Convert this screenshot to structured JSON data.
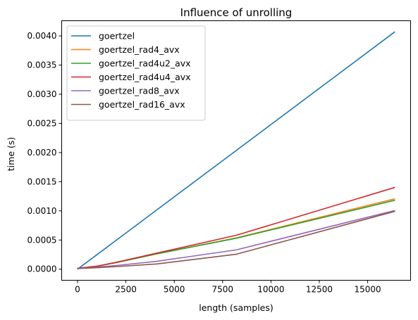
{
  "chart_data": {
    "type": "line",
    "title": "Influence of unrolling",
    "xlabel": "length (samples)",
    "ylabel": "time (s)",
    "xlim": [
      -820,
      17220
    ],
    "ylim": [
      -0.00019,
      0.00426
    ],
    "xticks": [
      0,
      2500,
      5000,
      7500,
      10000,
      12500,
      15000
    ],
    "xtick_labels": [
      "0",
      "2500",
      "5000",
      "7500",
      "10000",
      "12500",
      "15000"
    ],
    "yticks": [
      0.0,
      0.0005,
      0.001,
      0.0015,
      0.002,
      0.0025,
      0.003,
      0.0035,
      0.004
    ],
    "ytick_labels": [
      "0.0000",
      "0.0005",
      "0.0010",
      "0.0015",
      "0.0020",
      "0.0025",
      "0.0030",
      "0.0035",
      "0.0040"
    ],
    "grid": false,
    "legend_position": "top-left",
    "x": [
      16,
      32,
      64,
      128,
      256,
      512,
      1024,
      2048,
      4096,
      8192,
      16384
    ],
    "series": [
      {
        "name": "goertzel",
        "color": "#1f77b4",
        "values": [
          4e-06,
          8e-06,
          1.6e-05,
          3.2e-05,
          6.4e-05,
          0.000127,
          0.000254,
          0.000508,
          0.001016,
          0.002032,
          0.004065
        ]
      },
      {
        "name": "goertzel_rad4_avx",
        "color": "#ff7f0e",
        "values": [
          1.5e-05,
          1.6e-05,
          1.7e-05,
          1.9e-05,
          2.4e-05,
          3.3e-05,
          5.1e-05,
          0.000117,
          0.000265,
          0.000535,
          0.001205
        ]
      },
      {
        "name": "goertzel_rad4u2_avx",
        "color": "#2ca02c",
        "values": [
          1.5e-05,
          1.6e-05,
          1.7e-05,
          1.9e-05,
          2.4e-05,
          3.3e-05,
          5.1e-05,
          0.000116,
          0.000263,
          0.00053,
          0.00118
        ]
      },
      {
        "name": "goertzel_rad4u4_avx",
        "color": "#d62728",
        "values": [
          1.5e-05,
          1.6e-05,
          1.7e-05,
          2e-05,
          2.5e-05,
          3.4e-05,
          5.3e-05,
          0.000122,
          0.000275,
          0.00058,
          0.0014
        ]
      },
      {
        "name": "goertzel_rad8_avx",
        "color": "#9467bd",
        "values": [
          1.2e-05,
          1.3e-05,
          1.4e-05,
          1.6e-05,
          1.9e-05,
          2.5e-05,
          3.5e-05,
          6.5e-05,
          0.000135,
          0.00033,
          0.001005
        ]
      },
      {
        "name": "goertzel_rad16_avx",
        "color": "#8c564b",
        "values": [
          1e-05,
          1.1e-05,
          1.2e-05,
          1.3e-05,
          1.5e-05,
          1.9e-05,
          2.6e-05,
          4.5e-05,
          9e-05,
          0.000255,
          0.00099
        ]
      }
    ]
  }
}
